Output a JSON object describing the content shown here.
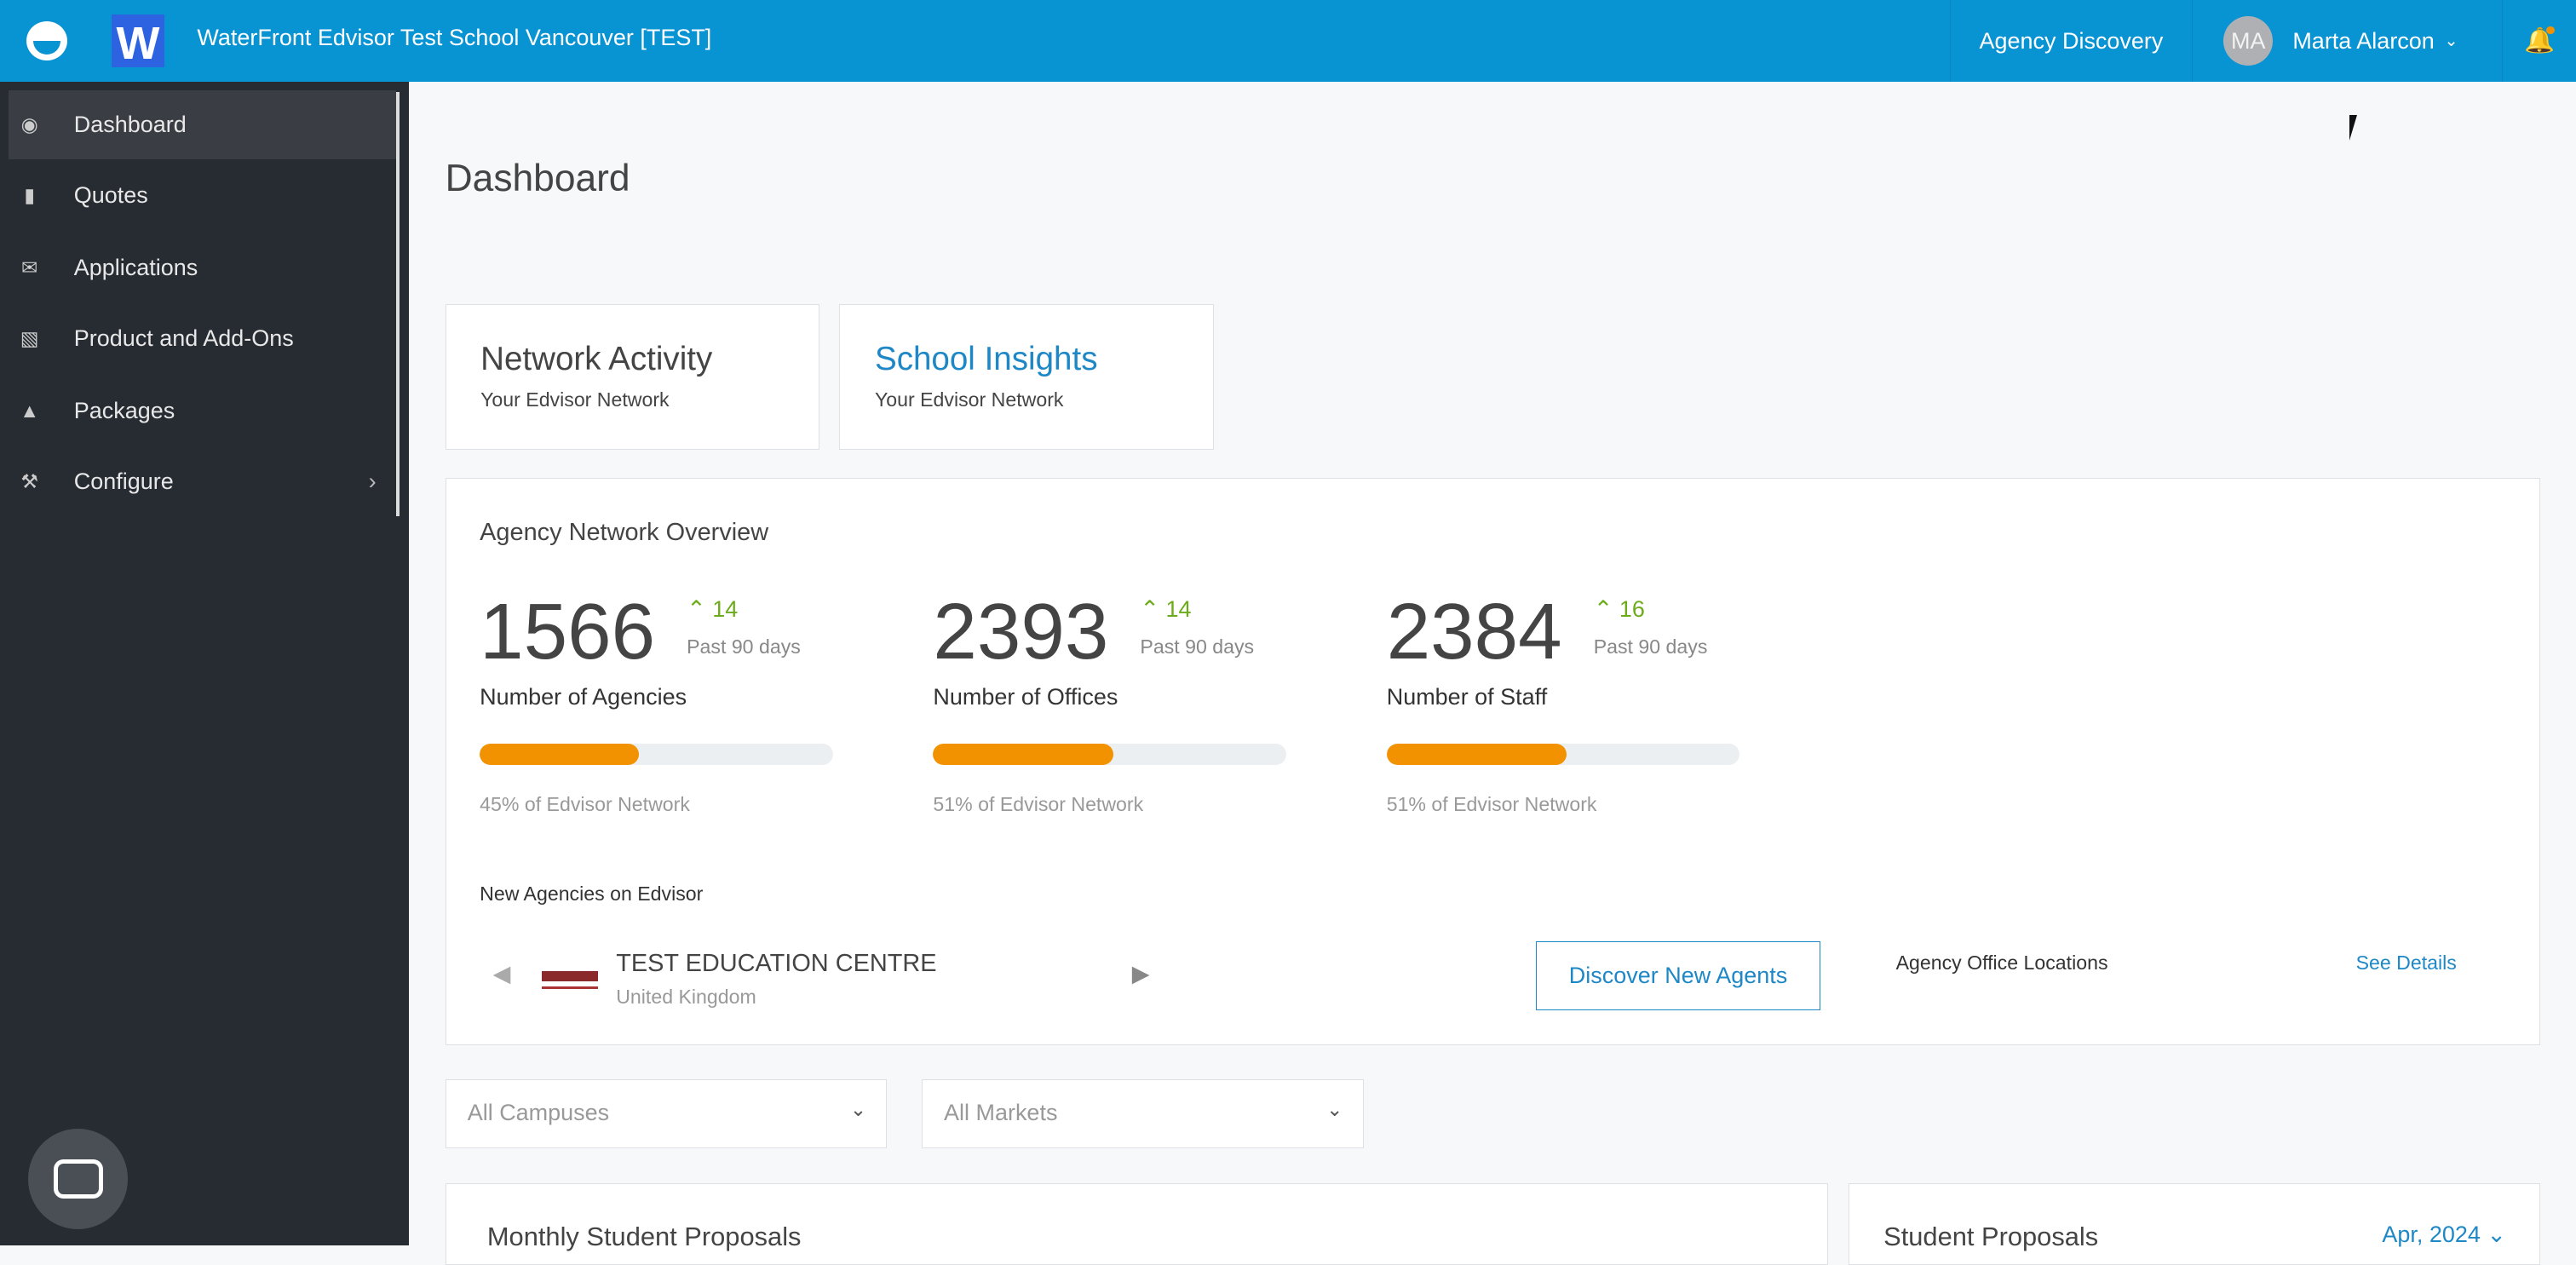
{
  "header": {
    "school": "WaterFront Edvisor Test School Vancouver [TEST]",
    "wlogo": "W",
    "agency_discovery": "Agency Discovery",
    "user_initials": "MA",
    "user_name": "Marta Alarcon"
  },
  "sidebar": {
    "items": [
      {
        "label": "Dashboard",
        "icon": "dashboard-icon",
        "active": true
      },
      {
        "label": "Quotes",
        "icon": "file-icon"
      },
      {
        "label": "Applications",
        "icon": "envelope-open-icon"
      },
      {
        "label": "Product and Add-Ons",
        "icon": "book-icon"
      },
      {
        "label": "Packages",
        "icon": "cubes-icon"
      },
      {
        "label": "Configure",
        "icon": "wrench-icon"
      }
    ]
  },
  "page": {
    "title": "Dashboard"
  },
  "tabs": [
    {
      "title": "Network Activity",
      "subtitle": "Your Edvisor Network",
      "active": false
    },
    {
      "title": "School Insights",
      "subtitle": "Your Edvisor Network",
      "active": true
    }
  ],
  "overview": {
    "title": "Agency Network Overview",
    "stats": [
      {
        "value": "1566",
        "delta": "14",
        "period": "Past 90 days",
        "label": "Number of Agencies",
        "percent": 45,
        "network": "45% of Edvisor Network"
      },
      {
        "value": "2393",
        "delta": "14",
        "period": "Past 90 days",
        "label": "Number of Offices",
        "percent": 51,
        "network": "51% of Edvisor Network"
      },
      {
        "value": "2384",
        "delta": "16",
        "period": "Past 90 days",
        "label": "Number of Staff",
        "percent": 51,
        "network": "51% of Edvisor Network"
      }
    ],
    "new_agencies_title": "New Agencies on Edvisor",
    "agency_name": "TEST EDUCATION CENTRE",
    "agency_country": "United Kingdom",
    "discover_button": "Discover New Agents",
    "office_locations": "Agency Office Locations",
    "see_details": "See Details"
  },
  "filters": {
    "campuses": "All Campuses",
    "markets": "All Markets"
  },
  "bottom": {
    "monthly_title": "Monthly Student Proposals",
    "proposals_title": "Student Proposals",
    "month": "Apr, 2024"
  },
  "colors": {
    "primary": "#0893d3",
    "accent": "#f39200",
    "positive": "#6cab1a"
  }
}
